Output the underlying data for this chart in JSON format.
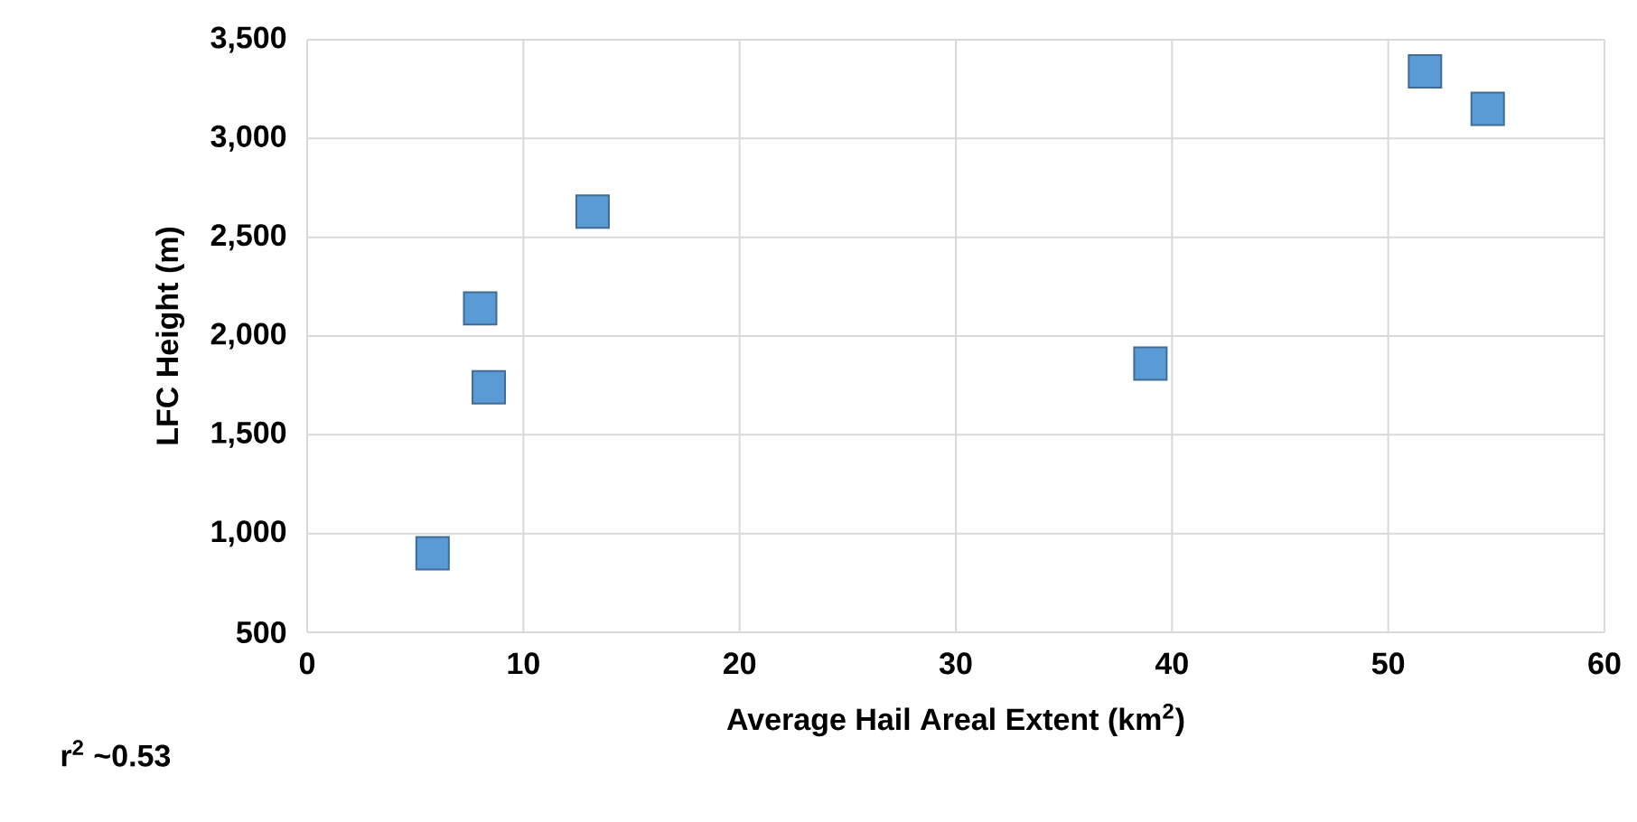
{
  "chart_data": {
    "type": "scatter",
    "xlabel": "Average Hail Areal Extent (km$^{2}$)",
    "ylabel": "LFC Height (m)",
    "annotations": [
      "r$^{2}$ ~0.53"
    ],
    "x": [
      5.8,
      8.0,
      8.4,
      13.2,
      39.0,
      51.7,
      54.6
    ],
    "values": [
      900,
      2140,
      1740,
      2630,
      1860,
      3340,
      3150
    ],
    "color": "#5b9bd5",
    "marker": "square",
    "grid": true,
    "xlim": [
      0,
      60
    ],
    "xticks": [
      0,
      10,
      20,
      30,
      40,
      50,
      60
    ],
    "ylim": [
      500,
      3500
    ],
    "yticks": [
      {
        "value": 500,
        "label": "500"
      },
      {
        "value": 1000,
        "label": "1,000"
      },
      {
        "value": 1500,
        "label": "1,500"
      },
      {
        "value": 2000,
        "label": "2,000"
      },
      {
        "value": 2500,
        "label": "2,500"
      },
      {
        "value": 3000,
        "label": "3,000"
      },
      {
        "value": 3500,
        "label": "3,500"
      }
    ]
  }
}
